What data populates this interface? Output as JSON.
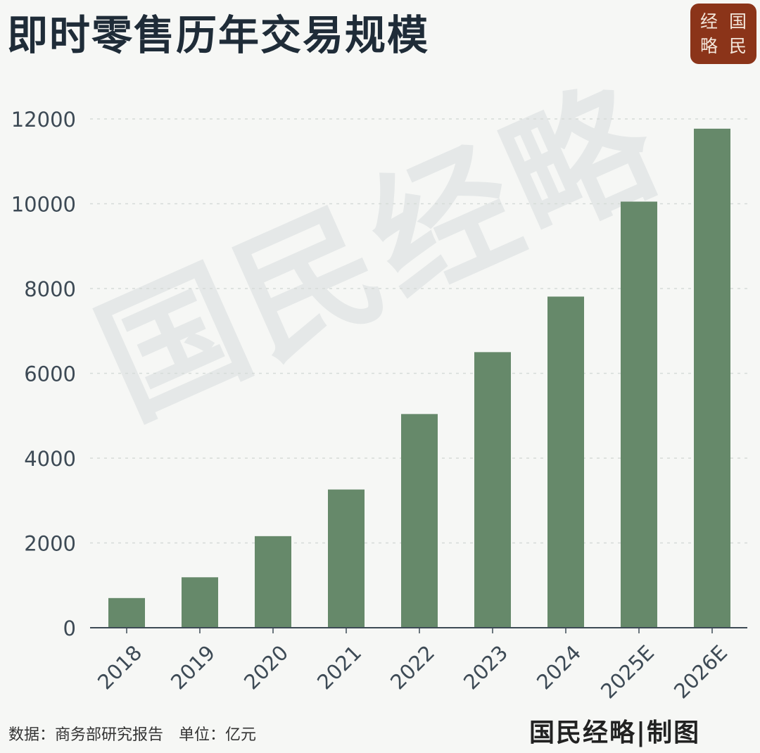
{
  "header": {
    "title": "即时零售历年交易规模"
  },
  "logo": {
    "chars": [
      "经",
      "国",
      "略",
      "民"
    ],
    "color": "#8b3419"
  },
  "watermark": {
    "text": "国民经略"
  },
  "chart_data": {
    "type": "bar",
    "title": "即时零售历年交易规模",
    "xlabel": "",
    "ylabel": "",
    "categories": [
      "2018",
      "2019",
      "2020",
      "2021",
      "2022",
      "2023",
      "2024",
      "2025E",
      "2026E"
    ],
    "values": [
      700,
      1190,
      2160,
      3260,
      5040,
      6500,
      7810,
      10050,
      11770
    ],
    "ylim": [
      0,
      12000
    ],
    "yticks": [
      0,
      2000,
      4000,
      6000,
      8000,
      10000,
      12000
    ],
    "grid": true,
    "bar_color": "#66896a",
    "legend": "none"
  },
  "footer": {
    "source": "数据：商务部研究报告",
    "unit": "单位：亿元",
    "credit": "国民经略|制图"
  }
}
